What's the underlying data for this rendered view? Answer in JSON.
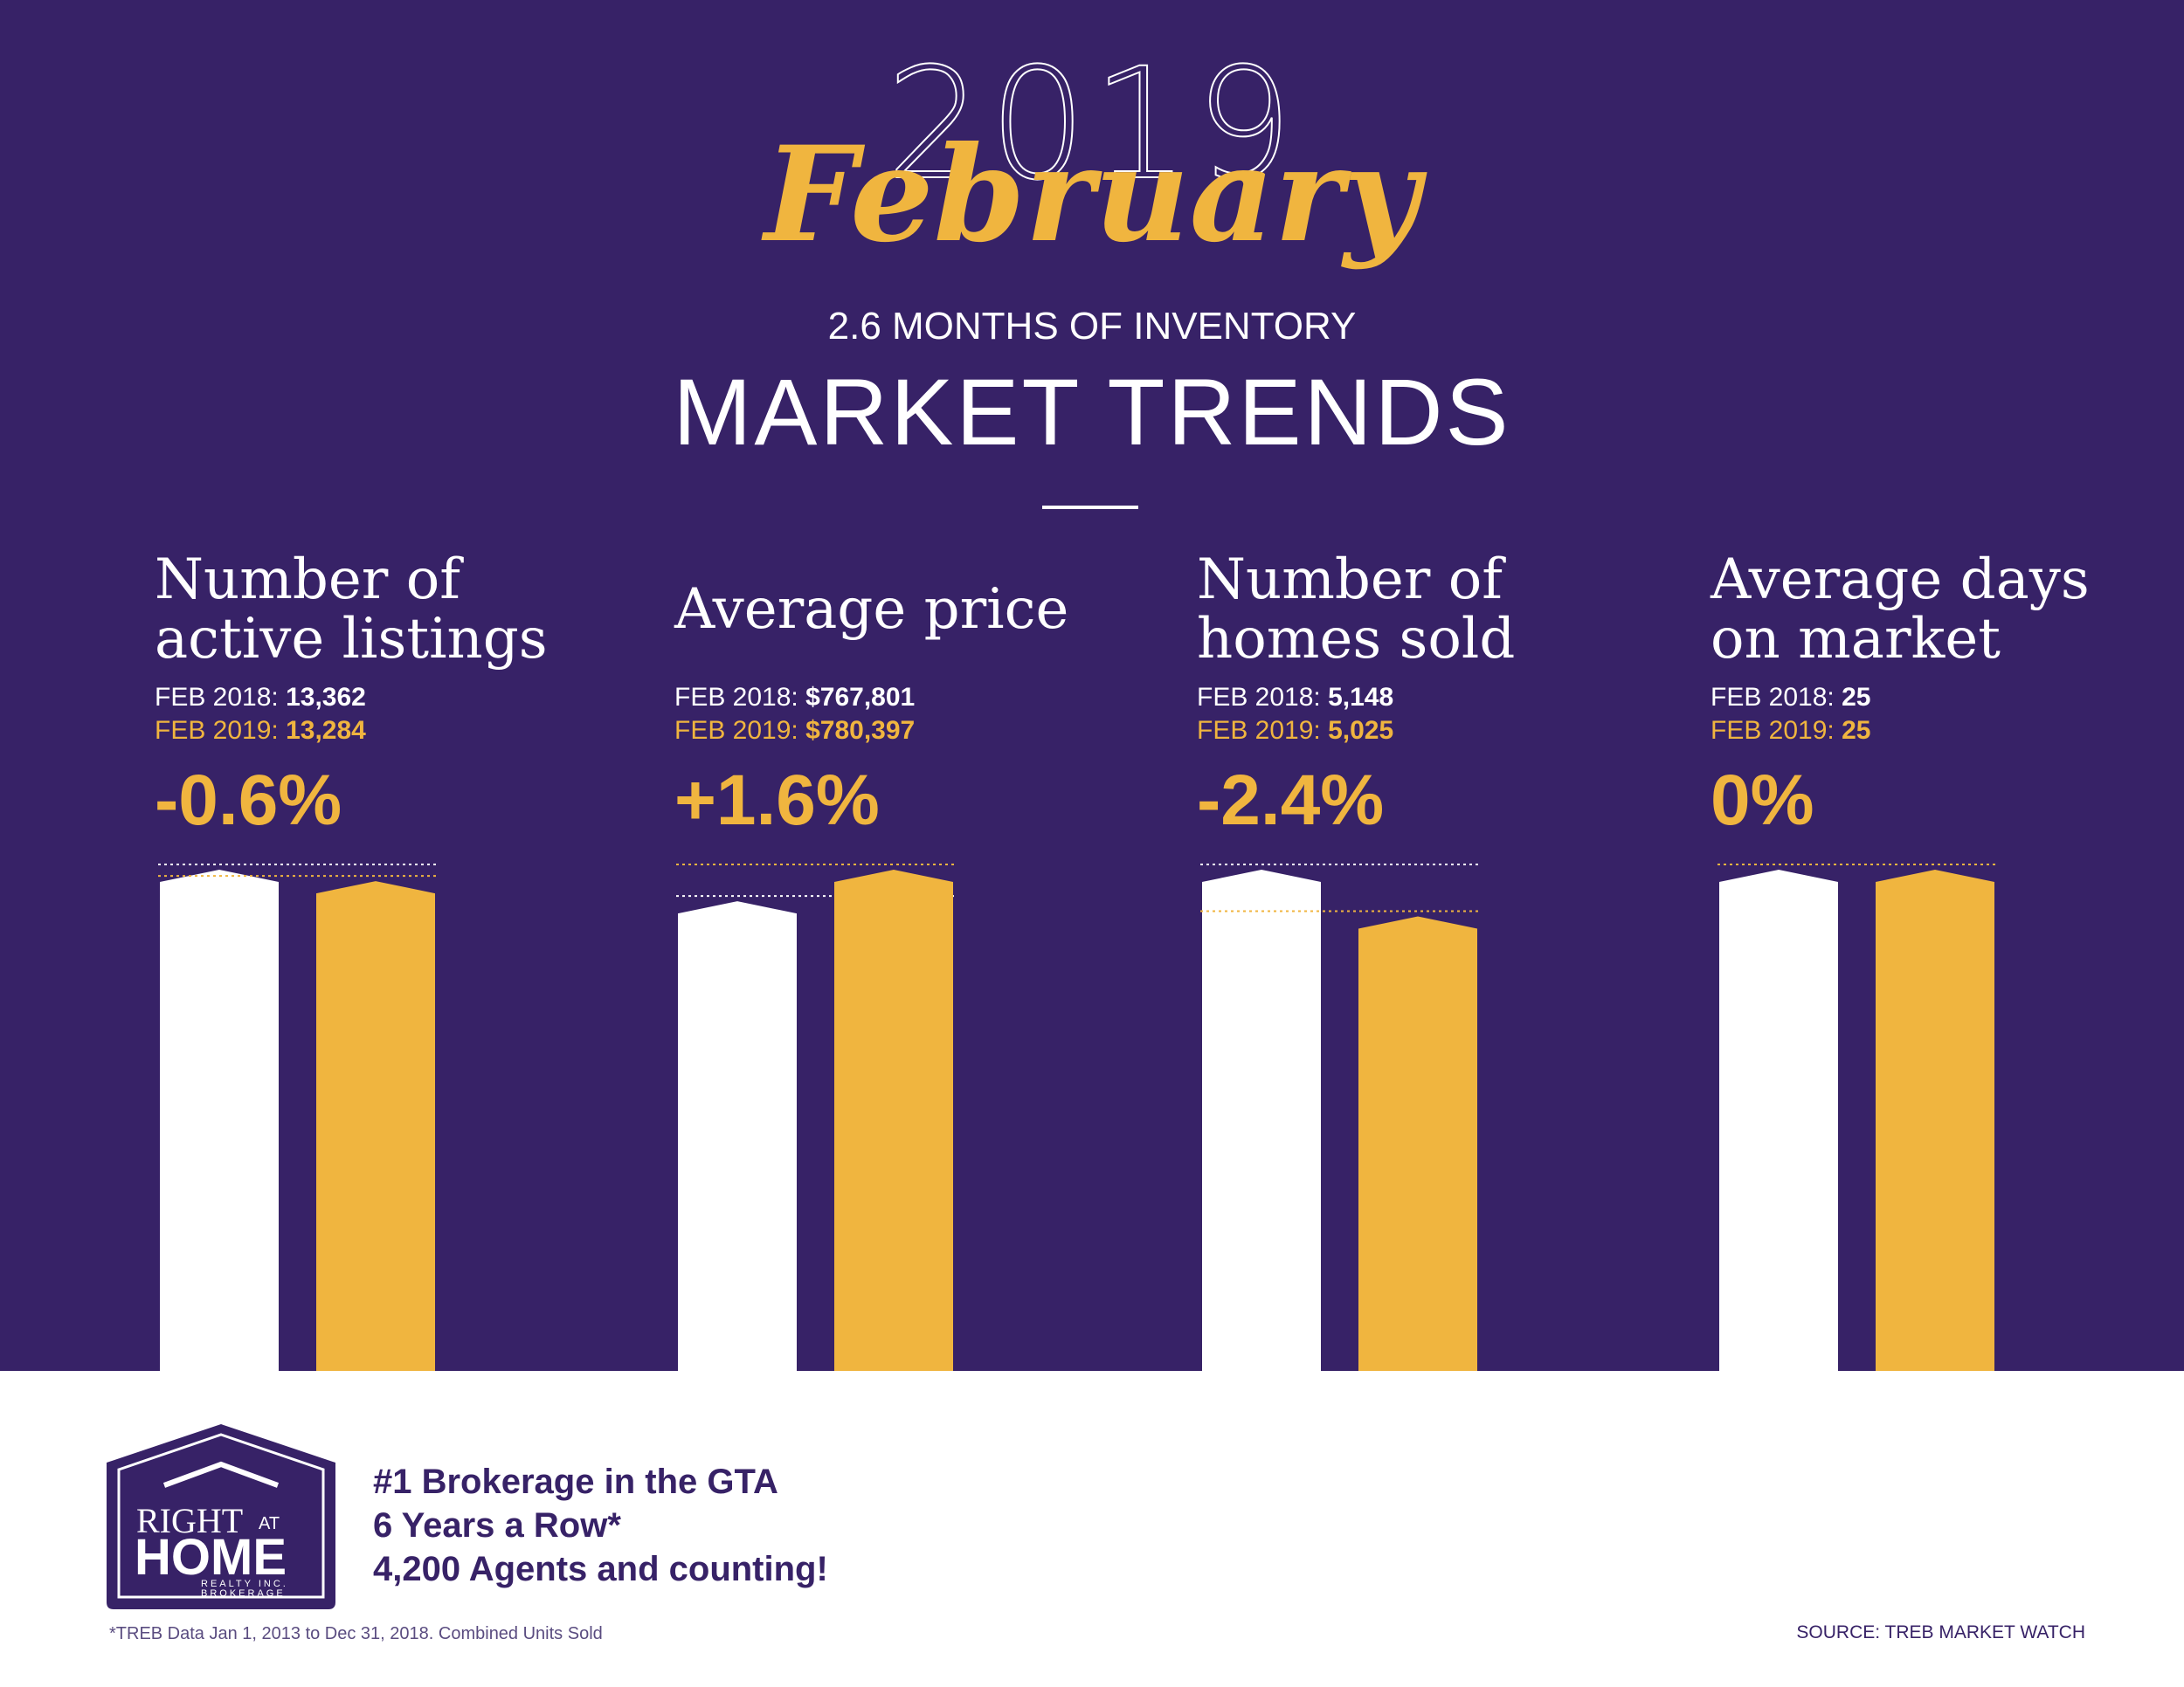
{
  "header": {
    "year": "2019",
    "month": "February",
    "inventory": "2.6 MONTHS OF INVENTORY",
    "subtitle": "MARKET TRENDS"
  },
  "metrics": [
    {
      "title": "Number of\nactive listings",
      "prev_label": "FEB 2018: ",
      "prev_value": "13,362",
      "curr_label": "FEB 2019: ",
      "curr_value": "13,284",
      "change": "-0.6%"
    },
    {
      "title": "Average price",
      "prev_label": "FEB 2018: ",
      "prev_value": "$767,801",
      "curr_label": "FEB 2019: ",
      "curr_value": "$780,397",
      "change": "+1.6%"
    },
    {
      "title": "Number of\nhomes sold",
      "prev_label": "FEB 2018: ",
      "prev_value": "5,148",
      "curr_label": "FEB 2019: ",
      "curr_value": "5,025",
      "change": "-2.4%"
    },
    {
      "title": "Average days\non market",
      "prev_label": "FEB 2018: ",
      "prev_value": "25",
      "curr_label": "FEB 2019: ",
      "curr_value": "25",
      "change": "0%"
    }
  ],
  "chart_data": {
    "type": "bar",
    "categories": [
      "Number of active listings",
      "Average price",
      "Number of homes sold",
      "Average days on market"
    ],
    "series": [
      {
        "name": "FEB 2018",
        "values": [
          13362,
          767801,
          5148,
          25
        ]
      },
      {
        "name": "FEB 2019",
        "values": [
          13284,
          780397,
          5025,
          25
        ]
      }
    ],
    "colors": {
      "FEB 2018": "#ffffff",
      "FEB 2019": "#f0b53f"
    }
  },
  "branding": {
    "logo_text_right": "RIGHT",
    "logo_text_at": "AT",
    "logo_text_home": "HOME",
    "logo_text_realty": "REALTY INC.",
    "logo_text_brokerage": "BROKERAGE",
    "tagline": [
      "#1 Brokerage in the GTA",
      "6 Years a Row*",
      "4,200 Agents and counting!"
    ]
  },
  "footer": {
    "note": "*TREB Data Jan 1, 2013 to Dec 31, 2018. Combined Units Sold",
    "source": "SOURCE: TREB MARKET WATCH"
  },
  "colors": {
    "background": "#372267",
    "accent": "#f0b53f",
    "white": "#ffffff"
  }
}
